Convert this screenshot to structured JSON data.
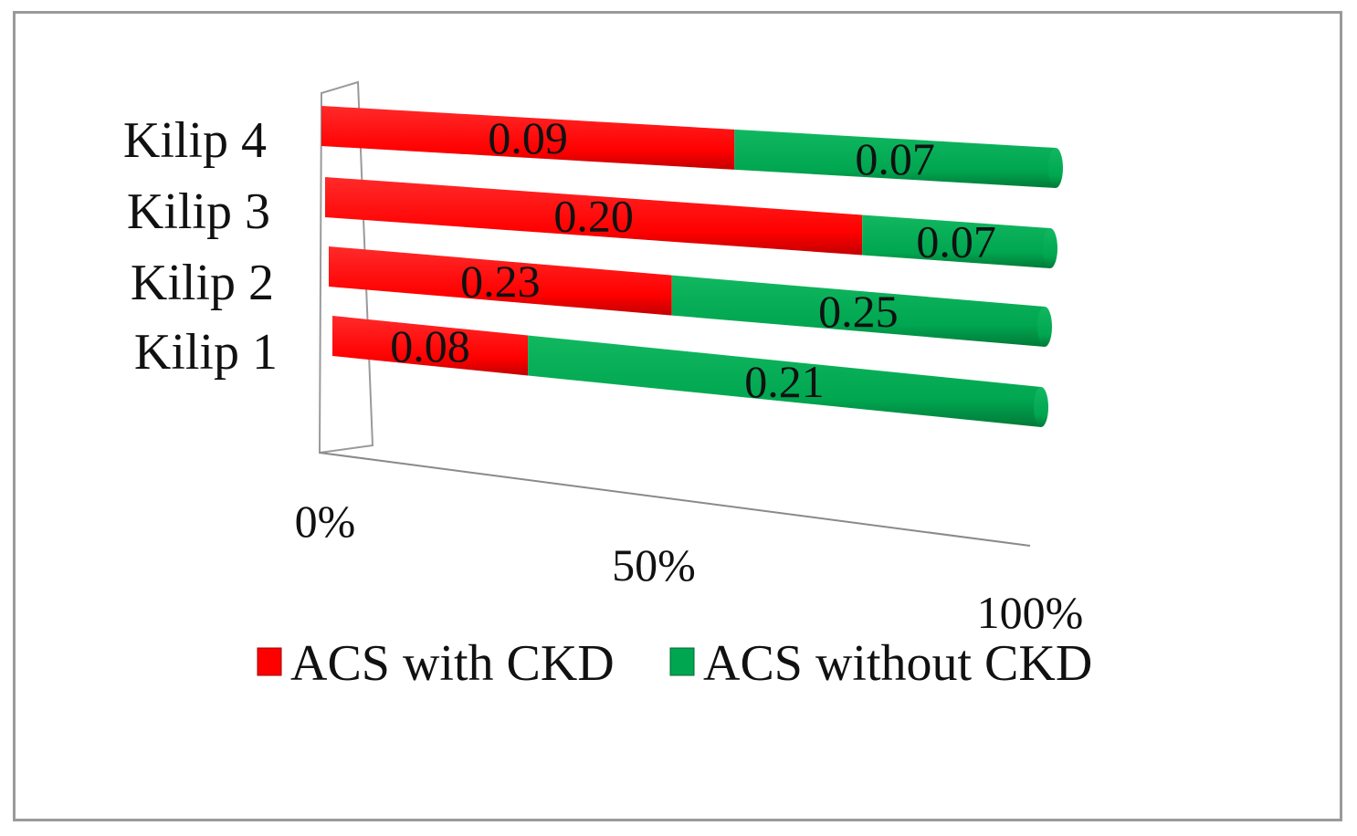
{
  "chart_data": {
    "type": "bar",
    "orientation": "horizontal",
    "stacked": "percent",
    "categories": [
      "Kilip 1",
      "Kilip 2",
      "Kilip 3",
      "Kilip 4"
    ],
    "series": [
      {
        "name": "ACS with CKD",
        "color": "#ff0000",
        "values": [
          0.08,
          0.23,
          0.2,
          0.09
        ],
        "labels": [
          "0.08",
          "0.23",
          "0.20",
          "0.09"
        ]
      },
      {
        "name": "ACS without CKD",
        "color": "#00a650",
        "values": [
          0.21,
          0.25,
          0.07,
          0.07
        ],
        "labels": [
          "0.21",
          "0.25",
          "0.07",
          "0.07"
        ]
      }
    ],
    "x_ticks": [
      "0%",
      "50%",
      "100%"
    ],
    "xlim": [
      0,
      100
    ],
    "title": "",
    "xlabel": "",
    "ylabel": "",
    "grid": false,
    "legend_position": "bottom"
  }
}
